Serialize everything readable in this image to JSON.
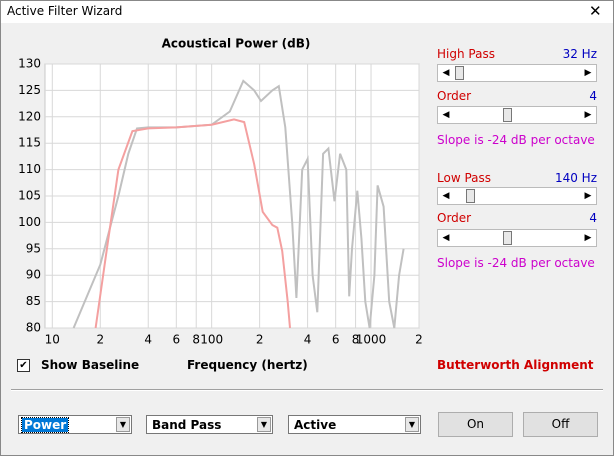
{
  "window": {
    "title": "Active Filter Wizard"
  },
  "chart_data": {
    "type": "line",
    "title": "Acoustical Power (dB)",
    "x_label": "Frequency (hertz)",
    "xscale": "log",
    "grid": true,
    "xlim": [
      9,
      2000
    ],
    "ylim": [
      80,
      130
    ],
    "xticks": [
      {
        "value": 10,
        "label": "10"
      },
      {
        "value": 20,
        "label": "2"
      },
      {
        "value": 40,
        "label": "4"
      },
      {
        "value": 60,
        "label": "6"
      },
      {
        "value": 80,
        "label": "8"
      },
      {
        "value": 100,
        "label": "100"
      },
      {
        "value": 200,
        "label": "2"
      },
      {
        "value": 400,
        "label": "4"
      },
      {
        "value": 600,
        "label": "6"
      },
      {
        "value": 800,
        "label": "8"
      },
      {
        "value": 1000,
        "label": "1000"
      },
      {
        "value": 2000,
        "label": "2"
      }
    ],
    "yticks": [
      80,
      85,
      90,
      95,
      100,
      105,
      110,
      115,
      120,
      125,
      130
    ],
    "series": [
      {
        "color": "#c0c0c0",
        "x": [
          13.6,
          20,
          26,
          30,
          34,
          40,
          60,
          100,
          130,
          158,
          185,
          204,
          240,
          264,
          290,
          320,
          340,
          370,
          400,
          430,
          460,
          500,
          540,
          590,
          640,
          700,
          730,
          760,
          820,
          870,
          920,
          980,
          1050,
          1100,
          1200,
          1300,
          1400,
          1500,
          1600
        ],
        "values": [
          80,
          92,
          105,
          113,
          117.8,
          118,
          118,
          118.5,
          121,
          126.8,
          125,
          123,
          125,
          125.8,
          118,
          100,
          85.7,
          110,
          112,
          90,
          83,
          113,
          114,
          104,
          113,
          110,
          86,
          95,
          106,
          97,
          85,
          80,
          90,
          107,
          103,
          85,
          80,
          90,
          95
        ]
      },
      {
        "color": "#f4a0a0",
        "x": [
          18.7,
          22,
          26,
          31.8,
          40,
          60,
          100,
          138,
          160,
          185,
          209,
          240,
          258,
          277,
          300,
          310
        ],
        "values": [
          80,
          95,
          110,
          117.3,
          117.8,
          118,
          118.5,
          119.5,
          119,
          111,
          102,
          99.5,
          99,
          94.6,
          85,
          80
        ]
      }
    ]
  },
  "high_pass": {
    "label": "High Pass",
    "value": "32 Hz",
    "order_label": "Order",
    "order": "4",
    "slope": "Slope is -24 dB per octave"
  },
  "low_pass": {
    "label": "Low Pass",
    "value": "140 Hz",
    "order_label": "Order",
    "order": "4",
    "slope": "Slope is -24 dB per octave"
  },
  "show_baseline": "Show Baseline",
  "alignment": "Butterworth Alignment",
  "dropdowns": [
    "Power",
    "Band Pass",
    "Active"
  ],
  "buttons": [
    "On",
    "Off"
  ]
}
